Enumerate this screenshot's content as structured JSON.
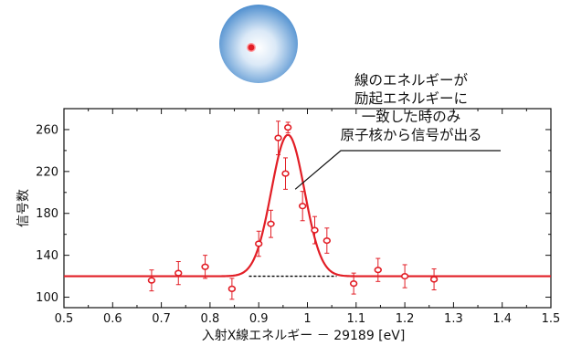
{
  "chart_data": {
    "type": "scatter",
    "xlabel": "入射X線エネルギー － 29189 [eV]",
    "ylabel": "信号数",
    "xlim": [
      0.5,
      1.5
    ],
    "ylim": [
      90,
      280
    ],
    "x_ticks": [
      "0.5",
      "0.6",
      "0.7",
      "0.8",
      "0.9",
      "1",
      "1.1",
      "1.2",
      "1.3",
      "1.4",
      "1.5"
    ],
    "y_ticks": [
      "100",
      "140",
      "180",
      "220",
      "260"
    ],
    "series": [
      {
        "kind": "points_with_error_bars",
        "color": "#e21e26",
        "points": [
          {
            "x": 0.68,
            "y": 116,
            "err": 10
          },
          {
            "x": 0.735,
            "y": 123,
            "err": 11
          },
          {
            "x": 0.79,
            "y": 129,
            "err": 11
          },
          {
            "x": 0.845,
            "y": 108,
            "err": 10
          },
          {
            "x": 0.9,
            "y": 151,
            "err": 12
          },
          {
            "x": 0.925,
            "y": 170,
            "err": 13
          },
          {
            "x": 0.94,
            "y": 252,
            "err": 16
          },
          {
            "x": 0.955,
            "y": 218,
            "err": 15
          },
          {
            "x": 0.96,
            "y": 262,
            "err": 5
          },
          {
            "x": 0.99,
            "y": 187,
            "err": 14
          },
          {
            "x": 1.015,
            "y": 164,
            "err": 13
          },
          {
            "x": 1.04,
            "y": 154,
            "err": 12
          },
          {
            "x": 1.095,
            "y": 113,
            "err": 10
          },
          {
            "x": 1.145,
            "y": 126,
            "err": 11
          },
          {
            "x": 1.2,
            "y": 120,
            "err": 11
          },
          {
            "x": 1.26,
            "y": 117,
            "err": 10
          }
        ]
      },
      {
        "kind": "gaussian_fit",
        "color": "#e21e26",
        "baseline": 120,
        "peak": 255,
        "center": 0.96,
        "sigma": 0.034
      },
      {
        "kind": "baseline_dashed",
        "color": "#000000",
        "y": 120,
        "x_range": [
          0.88,
          1.06
        ]
      }
    ],
    "annotation": {
      "lines": [
        "線のエネルギーが",
        "励起エネルギーに",
        "一致した時のみ",
        "原子核から信号が出る"
      ],
      "points_to": {
        "x": 0.975,
        "y": 203
      }
    },
    "grid": false
  },
  "decor": {
    "atom_icon": "atom-nucleus-icon",
    "atom_outer_color": "#5b9bd5",
    "nucleus_color": "#e21e26"
  }
}
